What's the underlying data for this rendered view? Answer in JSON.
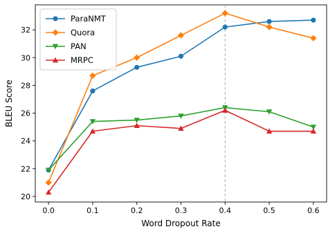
{
  "chart_data": {
    "type": "line",
    "xlabel": "Word Dropout Rate",
    "ylabel": "BLEU Score",
    "x": [
      0.0,
      0.1,
      0.2,
      0.3,
      0.4,
      0.5,
      0.6
    ],
    "x_tick_labels": [
      "0.0",
      "0.1",
      "0.2",
      "0.3",
      "0.4",
      "0.5",
      "0.6"
    ],
    "y_ticks": [
      20,
      22,
      24,
      26,
      28,
      30,
      32
    ],
    "xlim": [
      -0.03,
      0.63
    ],
    "ylim": [
      19.6,
      33.8
    ],
    "grid": false,
    "legend_position": "top-left",
    "annotations": [
      {
        "type": "vertical-dashed-line",
        "x": 0.4,
        "color": "#aaaaaa"
      }
    ],
    "series": [
      {
        "name": "ParaNMT",
        "color": "#1f77b4",
        "marker": "circle",
        "values": [
          21.9,
          27.6,
          29.3,
          30.1,
          32.2,
          32.6,
          32.7
        ]
      },
      {
        "name": "Quora",
        "color": "#ff7f0e",
        "marker": "diamond",
        "values": [
          21.0,
          28.7,
          30.0,
          31.6,
          33.2,
          32.2,
          31.4
        ]
      },
      {
        "name": "PAN",
        "color": "#2ca02c",
        "marker": "triangle-down",
        "values": [
          21.9,
          25.4,
          25.5,
          25.8,
          26.4,
          26.1,
          25.0
        ]
      },
      {
        "name": "MRPC",
        "color": "#d62728",
        "marker": "triangle-up",
        "values": [
          20.3,
          24.7,
          25.1,
          24.9,
          26.2,
          24.7,
          24.7
        ]
      }
    ]
  }
}
